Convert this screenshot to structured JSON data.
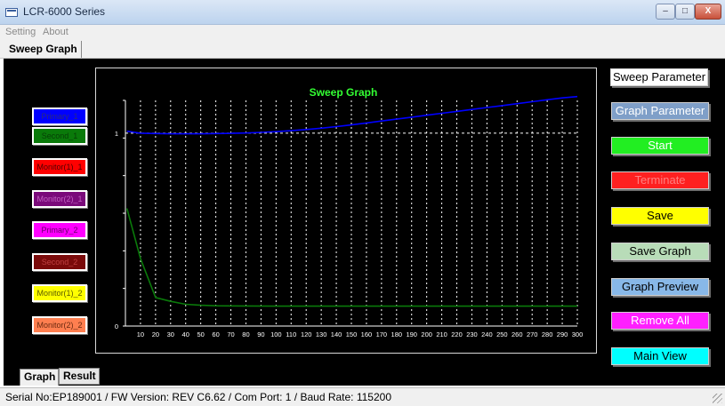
{
  "window": {
    "title": "LCR-6000 Series",
    "controls": {
      "min": "–",
      "max": "□",
      "close": "X"
    }
  },
  "menu": {
    "items": [
      "Setting",
      "About"
    ]
  },
  "top_tab": {
    "label": "Sweep Graph"
  },
  "series_buttons": [
    {
      "label": "Primary_1",
      "bg": "#0000ff",
      "fg": "#2b2b7a"
    },
    {
      "label": "Second_1",
      "bg": "#0a7a0a",
      "fg": "#063e06"
    },
    {
      "label": "Monitor(1)_1",
      "bg": "#ff0000",
      "fg": "#4a0000"
    },
    {
      "label": "Monitor(2)_1",
      "bg": "#7a0a7a",
      "fg": "#c060c0"
    },
    {
      "label": "Primary_2",
      "bg": "#ff00ff",
      "fg": "#6a006a"
    },
    {
      "label": "Second_2",
      "bg": "#7a0a0a",
      "fg": "#c04040"
    },
    {
      "label": "Monitor(1)_2",
      "bg": "#ffff00",
      "fg": "#5a5a00"
    },
    {
      "label": "Monitor(2)_2",
      "bg": "#ff7f50",
      "fg": "#6a2a10"
    }
  ],
  "side_buttons": [
    {
      "label": "Sweep Parameter",
      "bg": "#ffffff",
      "fg": "#000000"
    },
    {
      "label": "Graph Parameter",
      "bg": "#7f9fc8",
      "fg": "#ffffff"
    },
    {
      "label": "Start",
      "bg": "#22ee22",
      "fg": "#ffffff"
    },
    {
      "label": "Terminate",
      "bg": "#ff2020",
      "fg": "#ff8080"
    },
    {
      "label": "Save",
      "bg": "#ffff00",
      "fg": "#000000"
    },
    {
      "label": "Save Graph",
      "bg": "#b8dcb8",
      "fg": "#000000"
    },
    {
      "label": "Graph Preview",
      "bg": "#88b8e8",
      "fg": "#000000"
    },
    {
      "label": "Remove All",
      "bg": "#ff20ff",
      "fg": "#ffffff"
    },
    {
      "label": "Main View",
      "bg": "#00ffff",
      "fg": "#000000"
    }
  ],
  "bottom_tabs": [
    "Graph",
    "Result"
  ],
  "status": {
    "text": "Serial No:EP189001 / FW Version: REV C6.62 / Com Port: 1 / Baud Rate: 115200"
  },
  "chart_data": {
    "type": "line",
    "title": "Sweep Graph",
    "xlim": [
      0,
      300
    ],
    "ylim": [
      0,
      1.17
    ],
    "x_ticks": [
      10,
      20,
      30,
      40,
      50,
      60,
      70,
      80,
      90,
      100,
      110,
      120,
      130,
      140,
      150,
      160,
      170,
      180,
      190,
      200,
      210,
      220,
      230,
      240,
      250,
      260,
      270,
      280,
      290,
      300
    ],
    "y_ticks": [
      0,
      1
    ],
    "grid": true,
    "series": [
      {
        "color": "#0000ff",
        "x": [
          1,
          10,
          20,
          30,
          40,
          50,
          60,
          70,
          80,
          90,
          100,
          110,
          120,
          130,
          140,
          150,
          160,
          170,
          180,
          190,
          200,
          210,
          220,
          230,
          240,
          250,
          260,
          270,
          280,
          290,
          300
        ],
        "values": [
          1.01,
          1.0,
          0.998,
          0.997,
          0.997,
          0.997,
          0.998,
          0.999,
          1.001,
          1.004,
          1.008,
          1.013,
          1.019,
          1.026,
          1.034,
          1.043,
          1.053,
          1.063,
          1.073,
          1.083,
          1.093,
          1.103,
          1.113,
          1.123,
          1.133,
          1.143,
          1.153,
          1.163,
          1.173,
          1.183,
          1.19
        ]
      },
      {
        "color": "#0a7a0a",
        "x": [
          1,
          10,
          20,
          30,
          40,
          50,
          60,
          80,
          100,
          150,
          200,
          250,
          300
        ],
        "values": [
          0.61,
          0.35,
          0.148,
          0.128,
          0.113,
          0.108,
          0.105,
          0.104,
          0.103,
          0.103,
          0.103,
          0.103,
          0.103
        ]
      }
    ]
  }
}
